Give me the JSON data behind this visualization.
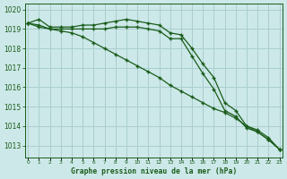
{
  "title": "Graphe pression niveau de la mer (hPa)",
  "background_color": "#cce8e8",
  "grid_color": "#aacece",
  "line_color": "#1a5c1a",
  "x_labels": [
    "0",
    "1",
    "2",
    "3",
    "4",
    "5",
    "6",
    "7",
    "8",
    "9",
    "10",
    "11",
    "12",
    "13",
    "14",
    "15",
    "16",
    "17",
    "18",
    "19",
    "20",
    "21",
    "22",
    "23"
  ],
  "ylim": [
    1012.4,
    1020.3
  ],
  "yticks": [
    1013,
    1014,
    1015,
    1016,
    1017,
    1018,
    1019,
    1020
  ],
  "series": [
    [
      1019.3,
      1019.5,
      1019.1,
      1019.1,
      1019.1,
      1019.2,
      1019.2,
      1019.3,
      1019.4,
      1019.5,
      1019.4,
      1019.3,
      1019.2,
      1018.8,
      1018.7,
      1018.0,
      1017.2,
      1016.5,
      1015.2,
      1014.8,
      1014.0,
      1013.8,
      1013.4,
      1012.8
    ],
    [
      1019.3,
      1019.1,
      1019.0,
      1019.0,
      1019.0,
      1019.0,
      1019.0,
      1019.0,
      1019.1,
      1019.1,
      1019.1,
      1019.0,
      1018.9,
      1018.5,
      1018.5,
      1017.6,
      1016.7,
      1015.9,
      1014.8,
      1014.5,
      1013.9,
      1013.7,
      1013.3,
      1012.8
    ],
    [
      1019.3,
      1019.2,
      1019.0,
      1018.9,
      1018.8,
      1018.6,
      1018.3,
      1018.0,
      1017.7,
      1017.4,
      1017.1,
      1016.8,
      1016.5,
      1016.1,
      1015.8,
      1015.5,
      1015.2,
      1014.9,
      1014.7,
      1014.4,
      1014.0,
      1013.7,
      1013.3,
      1012.8
    ]
  ]
}
